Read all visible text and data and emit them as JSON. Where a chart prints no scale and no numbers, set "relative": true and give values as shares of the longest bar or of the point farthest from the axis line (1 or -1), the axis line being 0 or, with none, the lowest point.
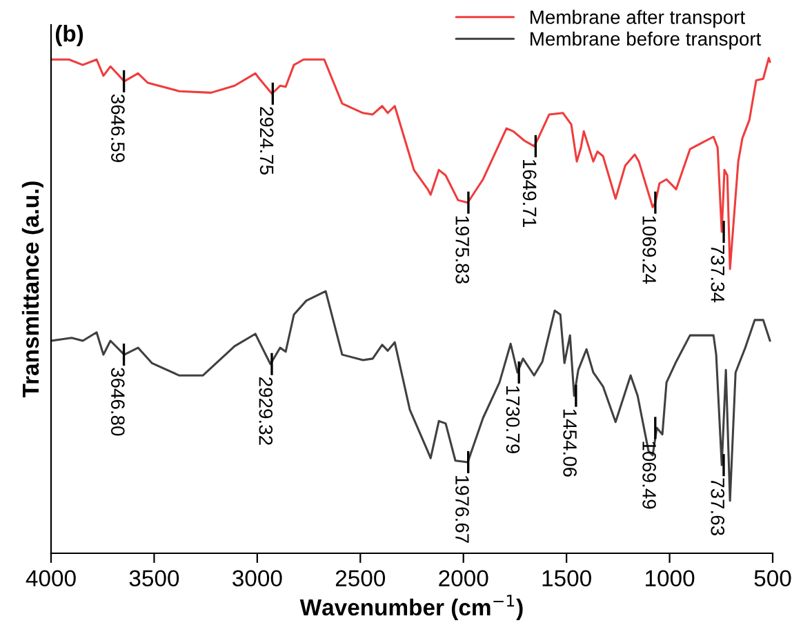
{
  "chart_data": {
    "type": "line",
    "title": "(b)",
    "xlabel": "Wavenumber (cm$^{−1}$)",
    "ylabel": "Transmittance (a.u.)",
    "relative": true,
    "xlim": [
      4000,
      500
    ],
    "xticks": [
      4000,
      3500,
      3000,
      2500,
      2000,
      1500,
      1000,
      500
    ],
    "grid": false,
    "legend": "top right",
    "series": [
      {
        "name": "Membrane after transport",
        "color": "#f03c3c",
        "x": [
          4000,
          3913,
          3846,
          3779,
          3746,
          3712,
          3645,
          3578,
          3531,
          3378,
          3224,
          3110,
          3009,
          2989,
          2929,
          2889,
          2862,
          2822,
          2775,
          2675,
          2588,
          2487,
          2440,
          2394,
          2367,
          2333,
          2260,
          2240,
          2173,
          2159,
          2119,
          2086,
          2026,
          1979,
          1905,
          1791,
          1758,
          1704,
          1657,
          1637,
          1584,
          1517,
          1477,
          1450,
          1430,
          1416,
          1370,
          1350,
          1323,
          1262,
          1215,
          1169,
          1149,
          1082,
          1069,
          1049,
          1015,
          968,
          901,
          787,
          767,
          747,
          734,
          720,
          707,
          667,
          647,
          613,
          580,
          546,
          519,
          513
        ],
        "values": [
          0.997,
          0.997,
          0.986,
          0.997,
          0.964,
          0.983,
          0.953,
          0.969,
          0.95,
          0.933,
          0.93,
          0.944,
          0.969,
          0.958,
          0.928,
          0.944,
          0.942,
          0.986,
          0.997,
          0.997,
          0.908,
          0.889,
          0.886,
          0.903,
          0.889,
          0.903,
          0.802,
          0.774,
          0.735,
          0.724,
          0.774,
          0.763,
          0.713,
          0.708,
          0.755,
          0.858,
          0.852,
          0.833,
          0.822,
          0.838,
          0.886,
          0.889,
          0.866,
          0.791,
          0.819,
          0.852,
          0.791,
          0.811,
          0.802,
          0.716,
          0.783,
          0.805,
          0.791,
          0.699,
          0.708,
          0.747,
          0.755,
          0.735,
          0.816,
          0.841,
          0.819,
          0.649,
          0.774,
          0.763,
          0.574,
          0.791,
          0.838,
          0.875,
          0.955,
          0.958,
          1.0,
          0.992
        ]
      },
      {
        "name": "Membrane before transport",
        "color": "#404040",
        "x": [
          4000,
          3900,
          3846,
          3779,
          3746,
          3712,
          3645,
          3578,
          3511,
          3378,
          3264,
          3110,
          3009,
          2989,
          2936,
          2889,
          2862,
          2822,
          2762,
          2668,
          2588,
          2487,
          2440,
          2394,
          2367,
          2333,
          2260,
          2173,
          2159,
          2119,
          2086,
          2039,
          1979,
          1905,
          1825,
          1771,
          1738,
          1711,
          1657,
          1617,
          1557,
          1530,
          1510,
          1483,
          1463,
          1443,
          1403,
          1370,
          1323,
          1262,
          1189,
          1155,
          1102,
          1082,
          1062,
          1035,
          1015,
          968,
          901,
          787,
          774,
          747,
          727,
          707,
          680,
          633,
          587,
          546,
          513
        ],
        "values": [
          0.429,
          0.435,
          0.429,
          0.446,
          0.401,
          0.429,
          0.401,
          0.415,
          0.384,
          0.359,
          0.359,
          0.418,
          0.443,
          0.426,
          0.382,
          0.415,
          0.407,
          0.482,
          0.51,
          0.529,
          0.401,
          0.39,
          0.393,
          0.421,
          0.409,
          0.426,
          0.29,
          0.206,
          0.192,
          0.267,
          0.262,
          0.187,
          0.184,
          0.273,
          0.345,
          0.423,
          0.365,
          0.393,
          0.359,
          0.387,
          0.49,
          0.482,
          0.384,
          0.44,
          0.318,
          0.37,
          0.412,
          0.365,
          0.337,
          0.265,
          0.359,
          0.318,
          0.206,
          0.198,
          0.253,
          0.24,
          0.345,
          0.387,
          0.44,
          0.44,
          0.401,
          0.178,
          0.37,
          0.106,
          0.365,
          0.415,
          0.471,
          0.471,
          0.429
        ]
      }
    ],
    "annotations": [
      {
        "text": "3646.59",
        "x": 3646.59,
        "y": 0.953
      },
      {
        "text": "2924.75",
        "x": 2924.75,
        "y": 0.928
      },
      {
        "text": "1975.83",
        "x": 1975.83,
        "y": 0.708
      },
      {
        "text": "1649.71",
        "x": 1649.71,
        "y": 0.822
      },
      {
        "text": "1069.24",
        "x": 1069.24,
        "y": 0.708
      },
      {
        "text": "737.34",
        "x": 737.34,
        "y": 0.649
      },
      {
        "text": "3646.80",
        "x": 3646.8,
        "y": 0.401
      },
      {
        "text": "2929.32",
        "x": 2929.32,
        "y": 0.382
      },
      {
        "text": "1976.67",
        "x": 1976.67,
        "y": 0.184
      },
      {
        "text": "1730.79",
        "x": 1730.79,
        "y": 0.365
      },
      {
        "text": "1454.06",
        "x": 1454.06,
        "y": 0.318
      },
      {
        "text": "1069.49",
        "x": 1069.49,
        "y": 0.253
      },
      {
        "text": "737.63",
        "x": 737.63,
        "y": 0.178
      }
    ]
  }
}
